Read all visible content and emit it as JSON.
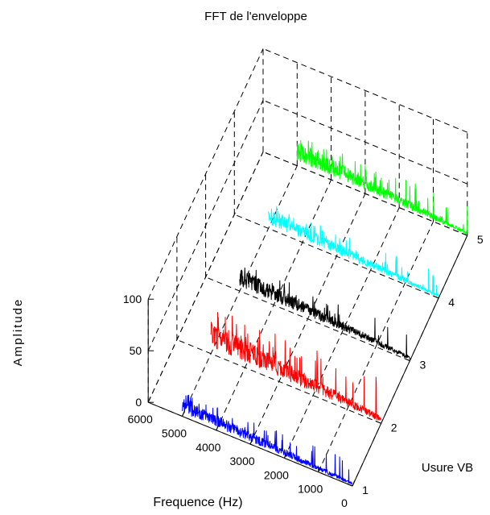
{
  "chart_data": {
    "type": "line",
    "title": "FFT de l'enveloppe",
    "xlabel": "Frequence (Hz)",
    "ylabel": "Usure VB",
    "zlabel": "Amplitude",
    "x_ticks": [
      "0",
      "1000",
      "2000",
      "3000",
      "4000",
      "5000",
      "6000"
    ],
    "y_ticks": [
      "1",
      "2",
      "3",
      "4",
      "5"
    ],
    "z_ticks": [
      "0",
      "50",
      "100"
    ],
    "xlim": [
      0,
      6000
    ],
    "ylim": [
      1,
      5
    ],
    "zlim": [
      0,
      100
    ],
    "grid": true,
    "series": [
      {
        "y": 1,
        "color": "#0000ff",
        "freq_range": [
          0,
          5000
        ],
        "amp_base_low_freq": 3,
        "amp_base_high_freq": 15,
        "amp_peak": 24
      },
      {
        "y": 2,
        "color": "#ff0000",
        "freq_range": [
          0,
          5000
        ],
        "amp_base_low_freq": 6,
        "amp_base_high_freq": 28,
        "amp_peak": 45
      },
      {
        "y": 3,
        "color": "#000000",
        "freq_range": [
          0,
          5000
        ],
        "amp_base_low_freq": 4,
        "amp_base_high_freq": 19,
        "amp_peak": 28
      },
      {
        "y": 4,
        "color": "#00ffff",
        "freq_range": [
          0,
          5000
        ],
        "amp_base_low_freq": 3,
        "amp_base_high_freq": 17,
        "amp_peak": 26
      },
      {
        "y": 5,
        "color": "#00ff00",
        "freq_range": [
          0,
          5000
        ],
        "amp_base_low_freq": 3,
        "amp_base_high_freq": 21,
        "amp_peak": 30
      }
    ]
  }
}
